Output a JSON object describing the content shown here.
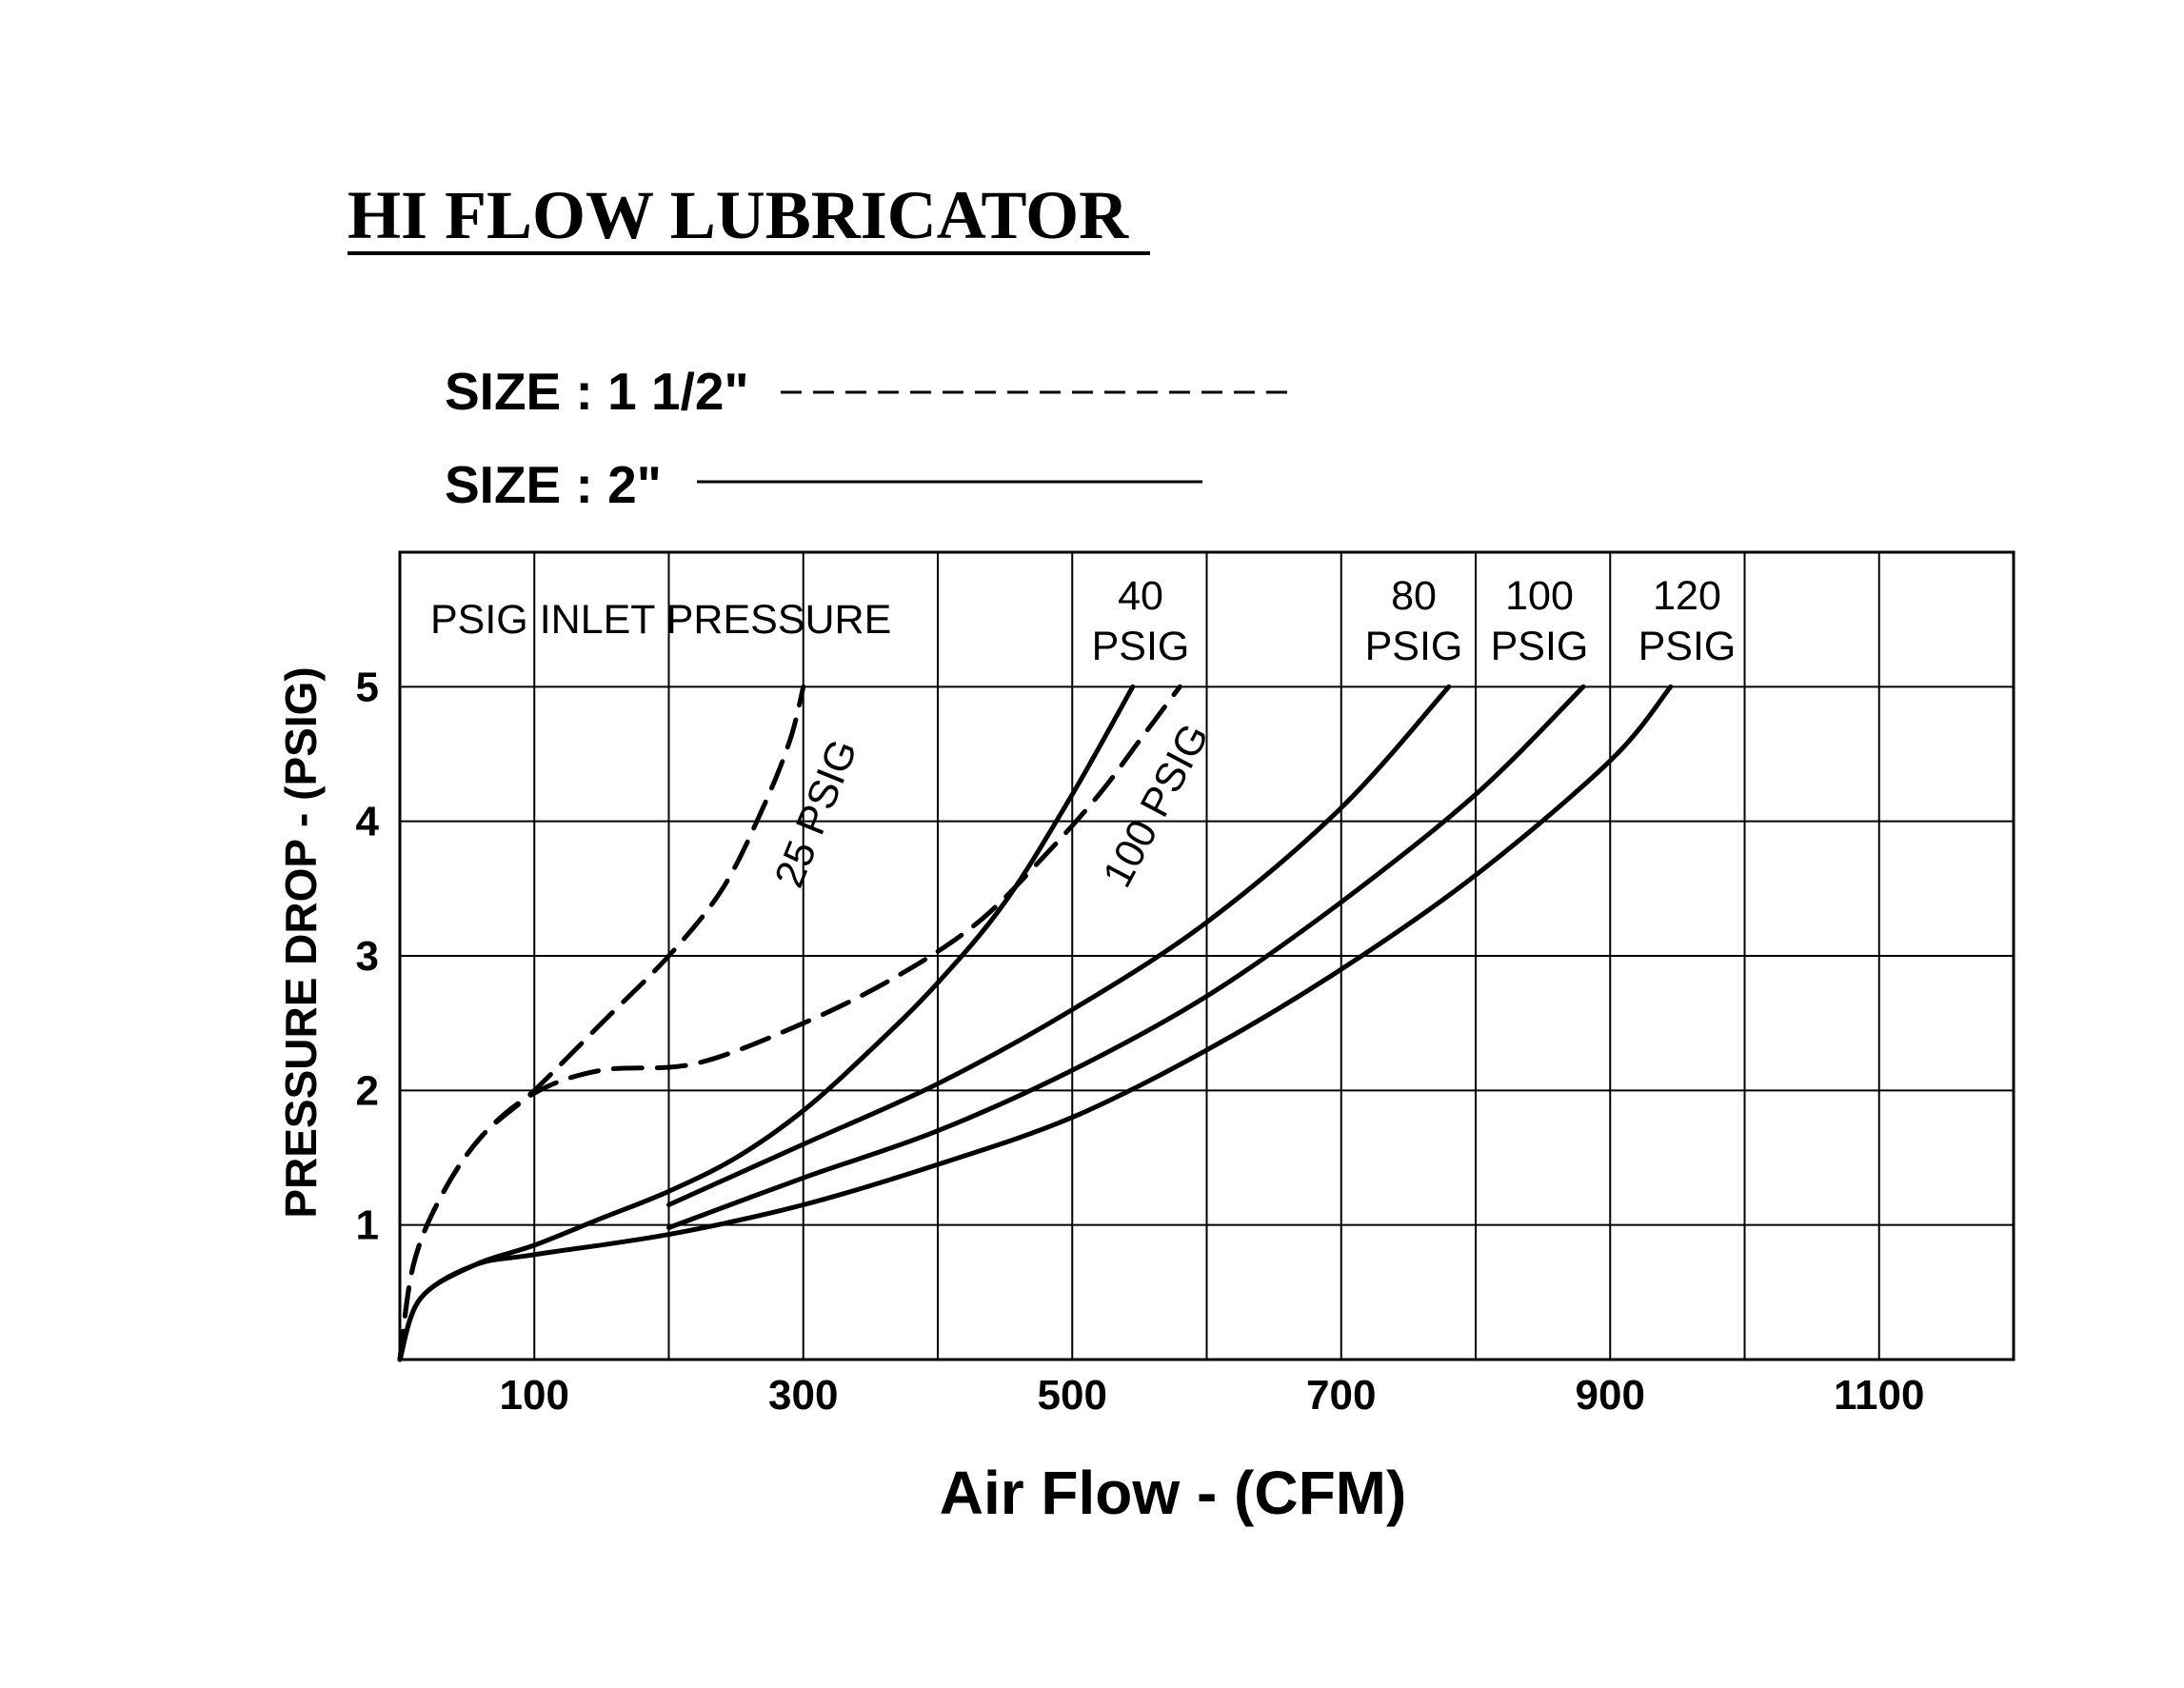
{
  "chart_data": {
    "type": "line",
    "title": "HI FLOW LUBRICATOR",
    "xlabel": "Air Flow - (CFM)",
    "ylabel": "PRESSURE DROP - (PSIG)",
    "xlim": [
      0,
      1200
    ],
    "ylim": [
      0,
      6
    ],
    "x_ticks": [
      100,
      300,
      500,
      700,
      900,
      1100
    ],
    "y_ticks": [
      1,
      2,
      3,
      4,
      5
    ],
    "grid": true,
    "legend": [
      {
        "label": "SIZE : 1 1/2\"",
        "style": "dashed"
      },
      {
        "label": "SIZE : 2\"",
        "style": "solid"
      }
    ],
    "annotation": "PSIG INLET PRESSURE",
    "series": [
      {
        "name": "25 PSIG",
        "size": "SIZE : 1 1/2\"",
        "style": "dashed",
        "points": [
          [
            0,
            0
          ],
          [
            10,
            0.7
          ],
          [
            30,
            1.2
          ],
          [
            60,
            1.65
          ],
          [
            100,
            2.0
          ],
          [
            150,
            2.5
          ],
          [
            200,
            3.0
          ],
          [
            240,
            3.5
          ],
          [
            270,
            4.1
          ],
          [
            290,
            4.6
          ],
          [
            300,
            5.0
          ]
        ]
      },
      {
        "name": "100 PSIG",
        "size": "SIZE : 1 1/2\"",
        "style": "dashed",
        "points": [
          [
            0,
            0
          ],
          [
            10,
            0.7
          ],
          [
            30,
            1.2
          ],
          [
            60,
            1.65
          ],
          [
            100,
            1.98
          ],
          [
            150,
            2.15
          ],
          [
            220,
            2.2
          ],
          [
            300,
            2.5
          ],
          [
            370,
            2.85
          ],
          [
            430,
            3.25
          ],
          [
            480,
            3.75
          ],
          [
            520,
            4.2
          ],
          [
            550,
            4.6
          ],
          [
            580,
            5.0
          ]
        ]
      },
      {
        "name": "40 PSIG",
        "size": "SIZE : 2\"",
        "style": "solid",
        "points": [
          [
            0,
            0
          ],
          [
            15,
            0.45
          ],
          [
            55,
            0.7
          ],
          [
            100,
            0.85
          ],
          [
            150,
            1.05
          ],
          [
            200,
            1.25
          ],
          [
            250,
            1.5
          ],
          [
            300,
            1.85
          ],
          [
            350,
            2.3
          ],
          [
            400,
            2.8
          ],
          [
            450,
            3.4
          ],
          [
            500,
            4.2
          ],
          [
            545,
            5.0
          ]
        ]
      },
      {
        "name": "80 PSIG",
        "size": "SIZE : 2\"",
        "style": "solid",
        "points": [
          [
            200,
            1.15
          ],
          [
            300,
            1.6
          ],
          [
            400,
            2.05
          ],
          [
            500,
            2.6
          ],
          [
            600,
            3.25
          ],
          [
            700,
            4.1
          ],
          [
            780,
            5.0
          ]
        ]
      },
      {
        "name": "100 PSIG",
        "size": "SIZE : 2\"",
        "style": "solid",
        "points": [
          [
            200,
            0.98
          ],
          [
            300,
            1.35
          ],
          [
            400,
            1.7
          ],
          [
            500,
            2.15
          ],
          [
            600,
            2.7
          ],
          [
            700,
            3.4
          ],
          [
            800,
            4.2
          ],
          [
            880,
            5.0
          ]
        ]
      },
      {
        "name": "120 PSIG",
        "size": "SIZE : 2\"",
        "style": "solid",
        "points": [
          [
            0,
            0
          ],
          [
            15,
            0.45
          ],
          [
            55,
            0.7
          ],
          [
            100,
            0.78
          ],
          [
            200,
            0.93
          ],
          [
            300,
            1.15
          ],
          [
            400,
            1.45
          ],
          [
            500,
            1.8
          ],
          [
            600,
            2.3
          ],
          [
            700,
            2.9
          ],
          [
            800,
            3.6
          ],
          [
            900,
            4.45
          ],
          [
            945,
            5.0
          ]
        ]
      }
    ],
    "curve_labels": [
      {
        "text": "40\nPSIG",
        "series": "40 PSIG (SIZE : 2\")"
      },
      {
        "text": "80\nPSIG",
        "series": "80 PSIG"
      },
      {
        "text": "100\nPSIG",
        "series": "100 PSIG (SIZE : 2\")"
      },
      {
        "text": "120\nPSIG",
        "series": "120 PSIG"
      },
      {
        "text": "25 PSIG",
        "series": "25 PSIG (rotated)"
      },
      {
        "text": "100 PSIG",
        "series": "100 PSIG (SIZE : 1 1/2\", rotated)"
      }
    ]
  }
}
